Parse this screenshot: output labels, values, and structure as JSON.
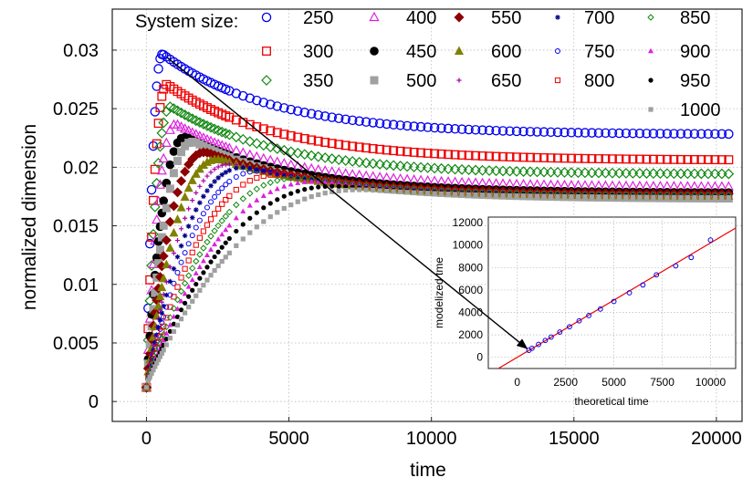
{
  "chart_data": [
    {
      "type": "scatter",
      "title": "",
      "xlabel": "time",
      "ylabel": "normalized dimension",
      "xlim": [
        -1200,
        20900
      ],
      "ylim": [
        -0.0017,
        0.0335
      ],
      "xticks": [
        "0",
        "5000",
        "10000",
        "15000",
        "20000"
      ],
      "xtick_values": [
        0,
        5000,
        10000,
        15000,
        20000
      ],
      "yticks": [
        "0",
        "0.005",
        "0.01",
        "0.015",
        "0.02",
        "0.025",
        "0.03"
      ],
      "ytick_values": [
        0,
        0.005,
        0.01,
        0.015,
        0.02,
        0.025,
        0.03
      ],
      "grid": true,
      "legend_title": "System size:",
      "legend_placement": "top",
      "x_end": 20500,
      "series": [
        {
          "name": "250",
          "color": "#0000ee",
          "marker": "circle-open",
          "peak_time": 600,
          "peak": 0.0296,
          "final": 0.0228
        },
        {
          "name": "300",
          "color": "#ee0000",
          "marker": "square-open",
          "peak_time": 760,
          "peak": 0.027,
          "final": 0.0206
        },
        {
          "name": "350",
          "color": "#118811",
          "marker": "diamond-open",
          "peak_time": 900,
          "peak": 0.0251,
          "final": 0.0194
        },
        {
          "name": "400",
          "color": "#dd22dd",
          "marker": "triangle-open",
          "peak_time": 1100,
          "peak": 0.0236,
          "final": 0.0183
        },
        {
          "name": "450",
          "color": "#000000",
          "marker": "circle-filled",
          "peak_time": 1450,
          "peak": 0.0225,
          "final": 0.0178
        },
        {
          "name": "500",
          "color": "#a0a0a0",
          "marker": "square-filled",
          "peak_time": 1750,
          "peak": 0.0221,
          "final": 0.0173
        },
        {
          "name": "550",
          "color": "#8b0000",
          "marker": "diamond-filled",
          "peak_time": 2200,
          "peak": 0.0212,
          "final": 0.0177
        },
        {
          "name": "600",
          "color": "#808000",
          "marker": "triangle-filled",
          "peak_time": 2700,
          "peak": 0.0206,
          "final": 0.0175
        },
        {
          "name": "650",
          "color": "#aa00aa",
          "marker": "plus",
          "peak_time": 3200,
          "peak": 0.0202,
          "final": 0.0176
        },
        {
          "name": "700",
          "color": "#000088",
          "marker": "star",
          "peak_time": 3700,
          "peak": 0.0199,
          "final": 0.0177
        },
        {
          "name": "750",
          "color": "#0000ee",
          "marker": "circle-small",
          "peak_time": 4300,
          "peak": 0.0196,
          "final": 0.0176
        },
        {
          "name": "800",
          "color": "#ee0000",
          "marker": "square-small",
          "peak_time": 5000,
          "peak": 0.0193,
          "final": 0.0176
        },
        {
          "name": "850",
          "color": "#118811",
          "marker": "diamond-small",
          "peak_time": 5800,
          "peak": 0.019,
          "final": 0.0176
        },
        {
          "name": "900",
          "color": "#dd22dd",
          "marker": "triangle-small",
          "peak_time": 6500,
          "peak": 0.0187,
          "final": 0.0175
        },
        {
          "name": "950",
          "color": "#000000",
          "marker": "dot",
          "peak_time": 7200,
          "peak": 0.0183,
          "final": 0.0175
        },
        {
          "name": "1000",
          "color": "#a0a0a0",
          "marker": "square-tiny",
          "peak_time": 8200,
          "peak": 0.018,
          "final": 0.0174
        }
      ]
    },
    {
      "type": "scatter",
      "title": "",
      "xlabel": "theoretical time",
      "ylabel": "modelized tme",
      "xlim": [
        -1500,
        11300
      ],
      "ylim": [
        -1000,
        12500
      ],
      "xticks": [
        "0",
        "2500",
        "5000",
        "7500",
        "10000"
      ],
      "xtick_values": [
        0,
        2500,
        5000,
        7500,
        10000
      ],
      "yticks": [
        "0",
        "2000",
        "4000",
        "6000",
        "8000",
        "10000",
        "12000"
      ],
      "ytick_values": [
        0,
        2000,
        4000,
        6000,
        8000,
        10000,
        12000
      ],
      "grid": true,
      "points": {
        "x": [
          600,
          760,
          1100,
          1450,
          1750,
          2200,
          2700,
          3200,
          3700,
          4300,
          5000,
          5800,
          6500,
          7200,
          8200,
          9000,
          10000
        ],
        "y": [
          620,
          800,
          1150,
          1500,
          1800,
          2250,
          2720,
          3250,
          3720,
          4300,
          4980,
          5750,
          6450,
          7350,
          8150,
          8900,
          10450
        ],
        "color": "#0000ee"
      },
      "fit_line": {
        "slope": 1.02,
        "intercept": 0,
        "color": "#ee0000"
      }
    }
  ]
}
